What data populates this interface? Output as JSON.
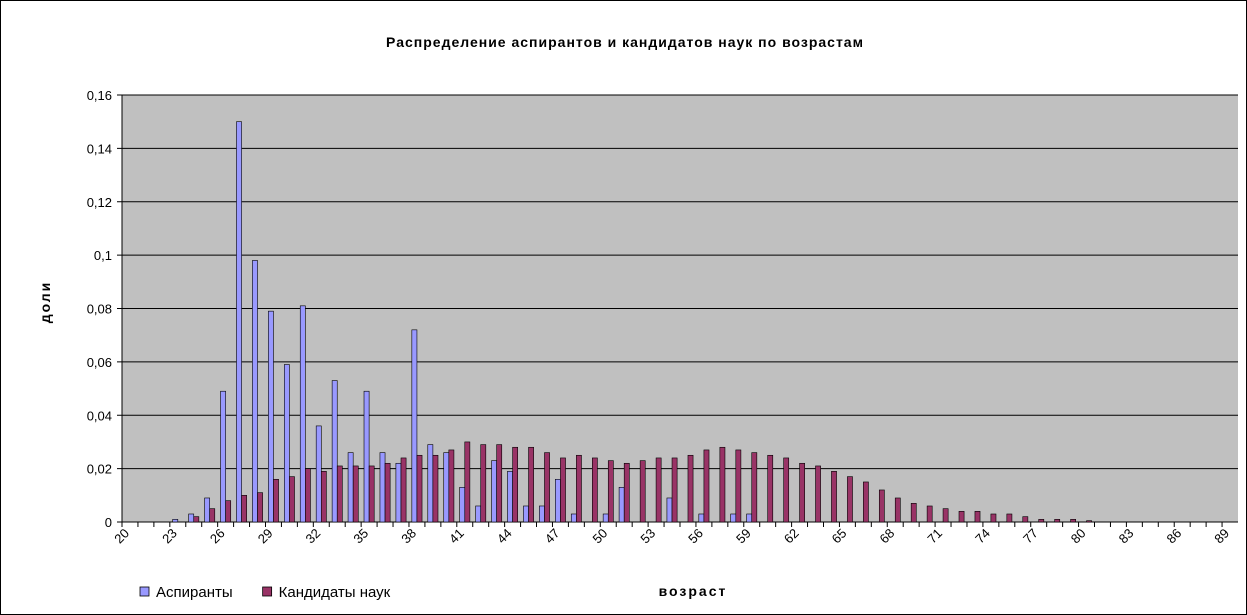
{
  "chart_data": {
    "type": "bar",
    "title": "Распределение аспирантов и кандидатов наук по возрастам",
    "x_label": "возраст",
    "y_label": "доли",
    "categories": [
      "20",
      null,
      null,
      "23",
      null,
      null,
      "26",
      null,
      null,
      "29",
      null,
      null,
      "32",
      null,
      null,
      "35",
      null,
      null,
      "38",
      null,
      null,
      "41",
      null,
      null,
      "44",
      null,
      null,
      "47",
      null,
      null,
      "50",
      null,
      null,
      "53",
      null,
      null,
      "56",
      null,
      null,
      "59",
      null,
      null,
      "62",
      null,
      null,
      "65",
      null,
      null,
      "68",
      null,
      null,
      "71",
      null,
      null,
      "74",
      null,
      null,
      "77",
      null,
      null,
      "80",
      null,
      null,
      "83",
      null,
      null,
      "86",
      null,
      null,
      "89"
    ],
    "series": [
      {
        "name": "Аспиранты",
        "color": "#9999ff",
        "values": [
          0,
          0,
          0,
          0.001,
          0.003,
          0.009,
          0.049,
          0.15,
          0.098,
          0.079,
          0.059,
          0.081,
          0.036,
          0.053,
          0.026,
          0.049,
          0.026,
          0.022,
          0.072,
          0.029,
          0.026,
          0.013,
          0.006,
          0.023,
          0.019,
          0.006,
          0.006,
          0.016,
          0.003,
          0,
          0.003,
          0.013,
          0,
          0,
          0.009,
          0,
          0.003,
          0,
          0.003,
          0.003,
          0,
          0,
          0,
          0,
          0,
          0,
          0,
          0,
          0,
          0,
          0,
          0,
          0,
          0,
          0,
          0,
          0,
          0,
          0,
          0,
          0,
          0,
          0,
          0,
          0,
          0,
          0,
          0,
          0,
          0
        ]
      },
      {
        "name": "Кандидаты наук",
        "color": "#993366",
        "values": [
          0,
          0,
          0,
          0,
          0.002,
          0.005,
          0.008,
          0.01,
          0.011,
          0.016,
          0.017,
          0.02,
          0.019,
          0.021,
          0.021,
          0.021,
          0.022,
          0.024,
          0.025,
          0.025,
          0.027,
          0.03,
          0.029,
          0.029,
          0.028,
          0.028,
          0.026,
          0.024,
          0.025,
          0.024,
          0.023,
          0.022,
          0.023,
          0.024,
          0.024,
          0.025,
          0.027,
          0.028,
          0.027,
          0.026,
          0.025,
          0.024,
          0.022,
          0.021,
          0.019,
          0.017,
          0.015,
          0.012,
          0.009,
          0.007,
          0.006,
          0.005,
          0.004,
          0.004,
          0.003,
          0.003,
          0.002,
          0.001,
          0.001,
          0.001,
          0.0005,
          0,
          0,
          0,
          0,
          0,
          0,
          0,
          0,
          0
        ]
      }
    ],
    "ylim": [
      0,
      0.16
    ],
    "yticks": [
      0,
      {
        "value": 0.02,
        "label": "0,02"
      },
      {
        "value": 0.04,
        "label": "0,04"
      },
      {
        "value": 0.06,
        "label": "0,06"
      },
      {
        "value": 0.08,
        "label": "0,08"
      },
      {
        "value": 0.1,
        "label": "0,1"
      },
      {
        "value": 0.12,
        "label": "0,12"
      },
      {
        "value": 0.14,
        "label": "0,14"
      },
      {
        "value": 0.16,
        "label": "0,16"
      }
    ],
    "grid": true,
    "legend": "bottom-left",
    "plot_background": "#c0c0c0"
  }
}
